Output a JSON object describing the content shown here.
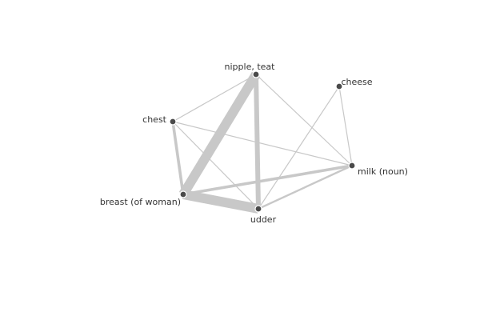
{
  "graph": {
    "nodes": [
      {
        "id": "nipple",
        "label": "nipple, teat"
      },
      {
        "id": "cheese",
        "label": "cheese"
      },
      {
        "id": "chest",
        "label": "chest"
      },
      {
        "id": "milk",
        "label": "milk (noun)"
      },
      {
        "id": "breast",
        "label": "breast (of woman)"
      },
      {
        "id": "udder",
        "label": "udder"
      }
    ],
    "edges": [
      {
        "source": "chest",
        "target": "nipple",
        "weight": 1
      },
      {
        "source": "chest",
        "target": "milk",
        "weight": 1
      },
      {
        "source": "chest",
        "target": "breast",
        "weight": 3
      },
      {
        "source": "chest",
        "target": "udder",
        "weight": 1
      },
      {
        "source": "nipple",
        "target": "breast",
        "weight": 10
      },
      {
        "source": "nipple",
        "target": "udder",
        "weight": 5
      },
      {
        "source": "nipple",
        "target": "milk",
        "weight": 1
      },
      {
        "source": "cheese",
        "target": "udder",
        "weight": 1
      },
      {
        "source": "cheese",
        "target": "milk",
        "weight": 1
      },
      {
        "source": "breast",
        "target": "udder",
        "weight": 10
      },
      {
        "source": "breast",
        "target": "milk",
        "weight": 3
      },
      {
        "source": "udder",
        "target": "milk",
        "weight": 2
      }
    ]
  },
  "colors": {
    "edge": "#c8c8c8",
    "node": "#4a4a4a",
    "label": "#333333"
  }
}
